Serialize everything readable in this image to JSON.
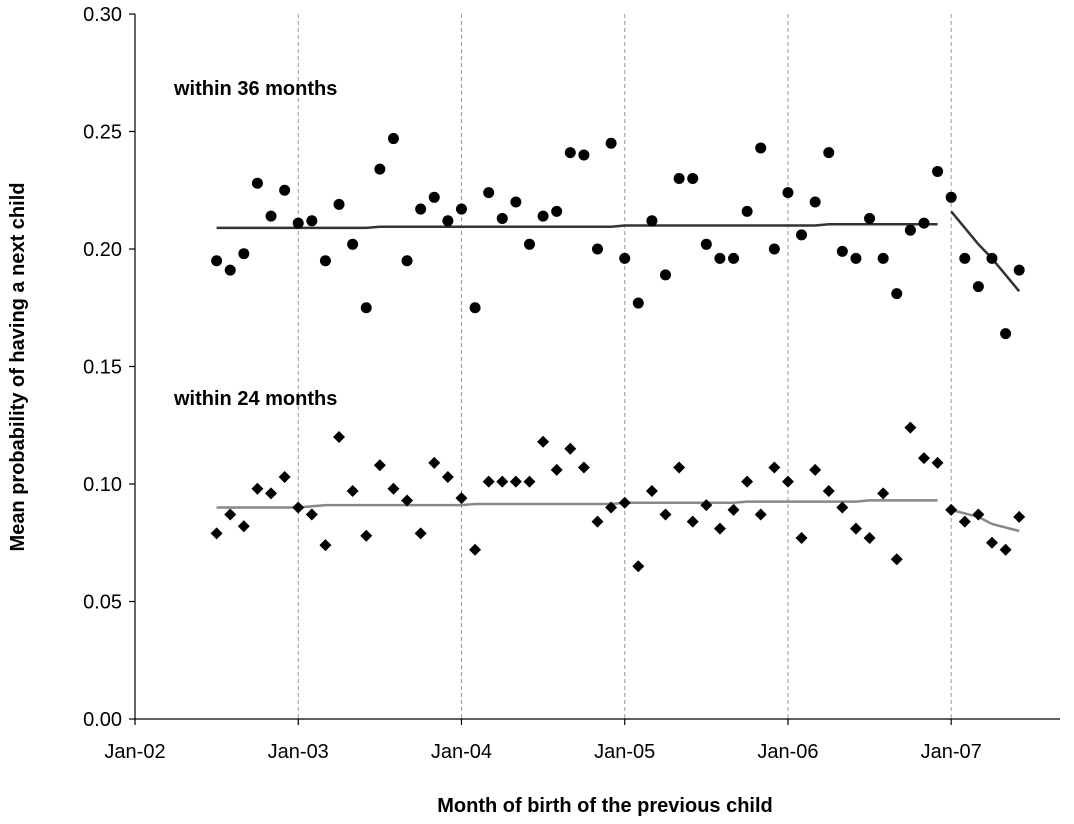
{
  "chart_data": {
    "type": "scatter",
    "xlabel": "Month of birth of the previous child",
    "ylabel": "Mean probability of having a next child",
    "x_ticks": [
      "Jan-02",
      "Jan-03",
      "Jan-04",
      "Jan-05",
      "Jan-06",
      "Jan-07"
    ],
    "xlim": [
      "2002-01",
      "2007-09"
    ],
    "y_ticks": [
      "0.00",
      "0.05",
      "0.10",
      "0.15",
      "0.20",
      "0.25",
      "0.30"
    ],
    "ylim": [
      0,
      0.3
    ],
    "grid": "vertical dashed lines at each January tick",
    "annotations": [
      {
        "text": "within 36 months",
        "anchor": "above upper series, left"
      },
      {
        "text": "within 24 months",
        "anchor": "above lower series, left"
      }
    ],
    "series": [
      {
        "name": "within 36 months",
        "marker": "circle",
        "color": "#000000",
        "points": [
          [
            "2002-07",
            0.195
          ],
          [
            "2002-08",
            0.191
          ],
          [
            "2002-09",
            0.198
          ],
          [
            "2002-10",
            0.228
          ],
          [
            "2002-11",
            0.214
          ],
          [
            "2002-12",
            0.225
          ],
          [
            "2003-01",
            0.211
          ],
          [
            "2003-02",
            0.212
          ],
          [
            "2003-03",
            0.195
          ],
          [
            "2003-04",
            0.219
          ],
          [
            "2003-05",
            0.202
          ],
          [
            "2003-06",
            0.175
          ],
          [
            "2003-07",
            0.234
          ],
          [
            "2003-08",
            0.247
          ],
          [
            "2003-09",
            0.195
          ],
          [
            "2003-10",
            0.217
          ],
          [
            "2003-11",
            0.222
          ],
          [
            "2003-12",
            0.212
          ],
          [
            "2004-01",
            0.217
          ],
          [
            "2004-02",
            0.175
          ],
          [
            "2004-03",
            0.224
          ],
          [
            "2004-04",
            0.213
          ],
          [
            "2004-05",
            0.22
          ],
          [
            "2004-06",
            0.202
          ],
          [
            "2004-07",
            0.214
          ],
          [
            "2004-08",
            0.216
          ],
          [
            "2004-09",
            0.241
          ],
          [
            "2004-10",
            0.24
          ],
          [
            "2004-11",
            0.2
          ],
          [
            "2004-12",
            0.245
          ],
          [
            "2005-01",
            0.196
          ],
          [
            "2005-02",
            0.177
          ],
          [
            "2005-03",
            0.212
          ],
          [
            "2005-04",
            0.189
          ],
          [
            "2005-05",
            0.23
          ],
          [
            "2005-06",
            0.23
          ],
          [
            "2005-07",
            0.202
          ],
          [
            "2005-08",
            0.196
          ],
          [
            "2005-09",
            0.196
          ],
          [
            "2005-10",
            0.216
          ],
          [
            "2005-11",
            0.243
          ],
          [
            "2005-12",
            0.2
          ],
          [
            "2006-01",
            0.224
          ],
          [
            "2006-02",
            0.206
          ],
          [
            "2006-03",
            0.22
          ],
          [
            "2006-04",
            0.241
          ],
          [
            "2006-05",
            0.199
          ],
          [
            "2006-06",
            0.196
          ],
          [
            "2006-07",
            0.213
          ],
          [
            "2006-08",
            0.196
          ],
          [
            "2006-09",
            0.181
          ],
          [
            "2006-10",
            0.208
          ],
          [
            "2006-11",
            0.211
          ],
          [
            "2006-12",
            0.233
          ],
          [
            "2007-01",
            0.222
          ],
          [
            "2007-02",
            0.196
          ],
          [
            "2007-03",
            0.184
          ],
          [
            "2007-04",
            0.196
          ],
          [
            "2007-05",
            0.164
          ],
          [
            "2007-06",
            0.191
          ]
        ],
        "fit_lines": [
          {
            "color": "#333333",
            "points": [
              [
                "2002-07",
                0.209
              ],
              [
                "2003-06",
                0.209
              ],
              [
                "2003-07",
                0.2095
              ],
              [
                "2004-12",
                0.2095
              ],
              [
                "2005-01",
                0.21
              ],
              [
                "2006-03",
                0.21
              ],
              [
                "2006-04",
                0.2105
              ],
              [
                "2006-12",
                0.2105
              ]
            ]
          },
          {
            "color": "#333333",
            "points": [
              [
                "2007-01",
                0.216
              ],
              [
                "2007-03",
                0.202
              ],
              [
                "2007-04",
                0.196
              ],
              [
                "2007-06",
                0.182
              ]
            ]
          }
        ]
      },
      {
        "name": "within 24 months",
        "marker": "diamond",
        "color": "#000000",
        "points": [
          [
            "2002-07",
            0.079
          ],
          [
            "2002-08",
            0.087
          ],
          [
            "2002-09",
            0.082
          ],
          [
            "2002-10",
            0.098
          ],
          [
            "2002-11",
            0.096
          ],
          [
            "2002-12",
            0.103
          ],
          [
            "2003-01",
            0.09
          ],
          [
            "2003-02",
            0.087
          ],
          [
            "2003-03",
            0.074
          ],
          [
            "2003-04",
            0.12
          ],
          [
            "2003-05",
            0.097
          ],
          [
            "2003-06",
            0.078
          ],
          [
            "2003-07",
            0.108
          ],
          [
            "2003-08",
            0.098
          ],
          [
            "2003-09",
            0.093
          ],
          [
            "2003-10",
            0.079
          ],
          [
            "2003-11",
            0.109
          ],
          [
            "2003-12",
            0.103
          ],
          [
            "2004-01",
            0.094
          ],
          [
            "2004-02",
            0.072
          ],
          [
            "2004-03",
            0.101
          ],
          [
            "2004-04",
            0.101
          ],
          [
            "2004-05",
            0.101
          ],
          [
            "2004-06",
            0.101
          ],
          [
            "2004-07",
            0.118
          ],
          [
            "2004-08",
            0.106
          ],
          [
            "2004-09",
            0.115
          ],
          [
            "2004-10",
            0.107
          ],
          [
            "2004-11",
            0.084
          ],
          [
            "2004-12",
            0.09
          ],
          [
            "2005-01",
            0.092
          ],
          [
            "2005-02",
            0.065
          ],
          [
            "2005-03",
            0.097
          ],
          [
            "2005-04",
            0.087
          ],
          [
            "2005-05",
            0.107
          ],
          [
            "2005-06",
            0.084
          ],
          [
            "2005-07",
            0.091
          ],
          [
            "2005-08",
            0.081
          ],
          [
            "2005-09",
            0.089
          ],
          [
            "2005-10",
            0.101
          ],
          [
            "2005-11",
            0.087
          ],
          [
            "2005-12",
            0.107
          ],
          [
            "2006-01",
            0.101
          ],
          [
            "2006-02",
            0.077
          ],
          [
            "2006-03",
            0.106
          ],
          [
            "2006-04",
            0.097
          ],
          [
            "2006-05",
            0.09
          ],
          [
            "2006-06",
            0.081
          ],
          [
            "2006-07",
            0.077
          ],
          [
            "2006-08",
            0.096
          ],
          [
            "2006-09",
            0.068
          ],
          [
            "2006-10",
            0.124
          ],
          [
            "2006-11",
            0.111
          ],
          [
            "2006-12",
            0.109
          ],
          [
            "2007-01",
            0.089
          ],
          [
            "2007-02",
            0.084
          ],
          [
            "2007-03",
            0.087
          ],
          [
            "2007-04",
            0.075
          ],
          [
            "2007-05",
            0.072
          ],
          [
            "2007-06",
            0.086
          ]
        ],
        "fit_lines": [
          {
            "color": "#888888",
            "points": [
              [
                "2002-07",
                0.09
              ],
              [
                "2003-01",
                0.09
              ],
              [
                "2003-03",
                0.091
              ],
              [
                "2004-01",
                0.091
              ],
              [
                "2004-02",
                0.0915
              ],
              [
                "2004-12",
                0.0915
              ],
              [
                "2005-01",
                0.092
              ],
              [
                "2005-09",
                0.092
              ],
              [
                "2005-10",
                0.0925
              ],
              [
                "2006-06",
                0.0925
              ],
              [
                "2006-07",
                0.093
              ],
              [
                "2006-12",
                0.093
              ]
            ]
          },
          {
            "color": "#888888",
            "points": [
              [
                "2007-01",
                0.089
              ],
              [
                "2007-03",
                0.086
              ],
              [
                "2007-04",
                0.083
              ],
              [
                "2007-06",
                0.08
              ]
            ]
          }
        ]
      }
    ]
  }
}
